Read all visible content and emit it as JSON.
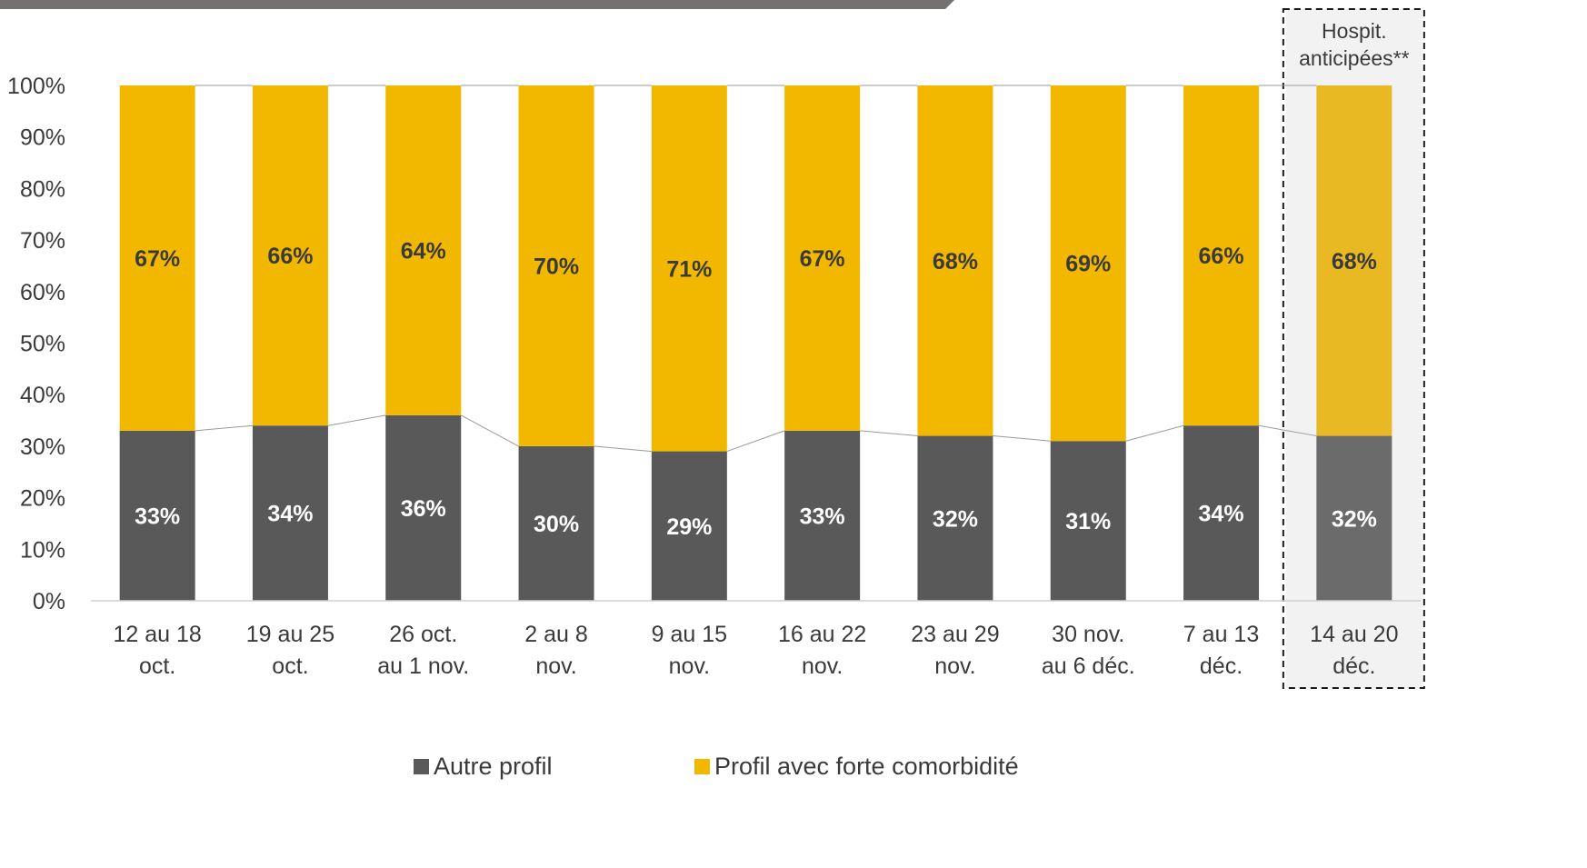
{
  "chart_data": {
    "type": "bar",
    "stacked": true,
    "categories": [
      [
        "12 au 18",
        "oct."
      ],
      [
        "19 au 25",
        "oct."
      ],
      [
        "26 oct.",
        "au 1 nov."
      ],
      [
        "2 au 8",
        "nov."
      ],
      [
        "9 au 15",
        "nov."
      ],
      [
        "16 au 22",
        "nov."
      ],
      [
        "23 au 29",
        "nov."
      ],
      [
        "30 nov.",
        "au 6 déc."
      ],
      [
        "7 au 13",
        "déc."
      ],
      [
        "14 au 20",
        "déc."
      ]
    ],
    "series": [
      {
        "name": "Autre profil",
        "color": "#595959",
        "values": [
          33,
          34,
          36,
          30,
          29,
          33,
          32,
          31,
          34,
          32
        ],
        "labels": [
          "33%",
          "34%",
          "36%",
          "30%",
          "29%",
          "33%",
          "32%",
          "31%",
          "34%",
          "32%"
        ]
      },
      {
        "name": "Profil avec forte comorbidité",
        "color": "#f2b800",
        "values": [
          67,
          66,
          64,
          70,
          71,
          67,
          68,
          69,
          66,
          68
        ],
        "labels": [
          "67%",
          "66%",
          "64%",
          "70%",
          "71%",
          "67%",
          "68%",
          "69%",
          "66%",
          "68%"
        ]
      }
    ],
    "highlight": {
      "category_index": 9,
      "label_lines": [
        "Hospit.",
        "anticipées**"
      ],
      "colors": {
        "Autre profil": "#6b6b6b",
        "Profil avec forte comorbidité": "#e8b923"
      }
    },
    "yticks": [
      "0%",
      "10%",
      "20%",
      "30%",
      "40%",
      "50%",
      "60%",
      "70%",
      "80%",
      "90%",
      "100%"
    ],
    "ylim": [
      0,
      100
    ],
    "grid": false,
    "legend": "bottom",
    "colors": {
      "top_bar": "#767171",
      "axis": "#d0d0d0",
      "text": "#3a3a3a"
    }
  }
}
